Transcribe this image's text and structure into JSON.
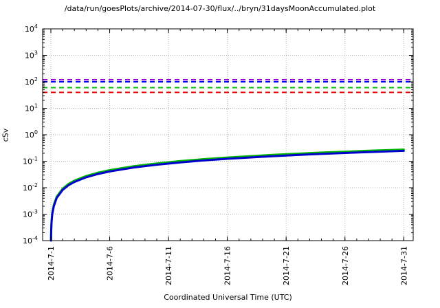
{
  "chart_data": {
    "type": "line",
    "title": "/data/run/goesPlots/archive/2014-07-30/flux/../bryn/31daysMoonAccumulated.plot",
    "xlabel": "Coordinated Universal Time (UTC)",
    "ylabel": "cSv",
    "grid": "dotted",
    "y_scale": "log10",
    "y_ticks_exp": [
      -4,
      -3,
      -2,
      -1,
      0,
      1,
      2,
      3,
      4
    ],
    "ylim": [
      0.0001,
      10000
    ],
    "x_range_days": [
      -0.7,
      30.8
    ],
    "x_ticks": [
      {
        "day": 0,
        "label": "2014-7-1"
      },
      {
        "day": 5,
        "label": "2014-7-6"
      },
      {
        "day": 10,
        "label": "2014-7-11"
      },
      {
        "day": 15,
        "label": "2014-7-16"
      },
      {
        "day": 20,
        "label": "2014-7-21"
      },
      {
        "day": 25,
        "label": "2014-7-26"
      },
      {
        "day": 30,
        "label": "2014-7-31"
      }
    ],
    "legend": "none",
    "thresholds": [
      {
        "name": "purple-limit",
        "value": 120,
        "color": "#9400d3",
        "style": "dashed"
      },
      {
        "name": "blue-limit",
        "value": 100,
        "color": "#0000ff",
        "style": "dashed"
      },
      {
        "name": "green-limit",
        "value": 60,
        "color": "#00c000",
        "style": "dashed"
      },
      {
        "name": "red-limit",
        "value": 40,
        "color": "#e00000",
        "style": "dashed"
      }
    ],
    "series": [
      {
        "name": "accumulated-dose-green",
        "color": "#00b400",
        "x_days": [
          0.012,
          0.03,
          0.06,
          0.12,
          0.25,
          0.5,
          1,
          1.5,
          2,
          3,
          4,
          5,
          7,
          9,
          11,
          13,
          15,
          17,
          19,
          21,
          23,
          25,
          27,
          29,
          30
        ],
        "values": [
          0.00011,
          0.00028,
          0.00055,
          0.0011,
          0.0023,
          0.0046,
          0.0092,
          0.0138,
          0.0184,
          0.0276,
          0.0368,
          0.046,
          0.0644,
          0.0828,
          0.101,
          0.12,
          0.138,
          0.156,
          0.175,
          0.193,
          0.212,
          0.23,
          0.248,
          0.267,
          0.276
        ]
      },
      {
        "name": "accumulated-dose-blue",
        "color": "#0000cd",
        "x_days": [
          0.012,
          0.03,
          0.06,
          0.12,
          0.25,
          0.5,
          1,
          1.5,
          2,
          3,
          4,
          5,
          7,
          9,
          11,
          13,
          15,
          17,
          19,
          21,
          23,
          25,
          27,
          29,
          30
        ],
        "values": [
          0.0001,
          0.00025,
          0.0005,
          0.001,
          0.002,
          0.0041,
          0.0082,
          0.0123,
          0.0164,
          0.0246,
          0.0328,
          0.041,
          0.0574,
          0.0738,
          0.09,
          0.107,
          0.123,
          0.139,
          0.156,
          0.172,
          0.189,
          0.205,
          0.221,
          0.238,
          0.246
        ]
      }
    ],
    "colors": {
      "axis": "#000000",
      "grid": "#b4b4b4",
      "background": "#ffffff"
    }
  }
}
